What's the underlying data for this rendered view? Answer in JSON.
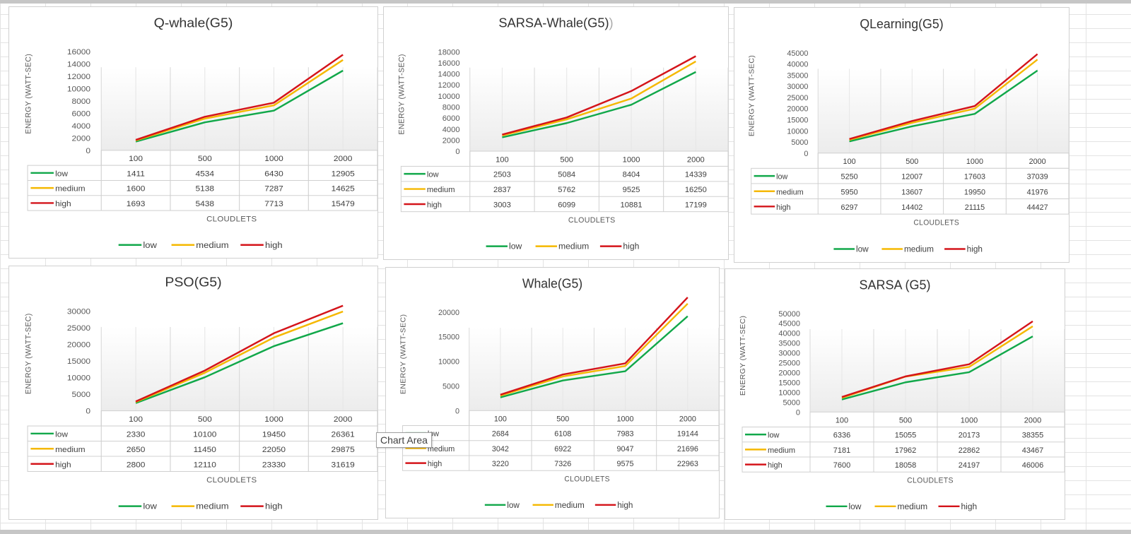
{
  "chart_data": [
    {
      "type": "line",
      "title": "Q-whale(G5)",
      "xlabel": "CLOUDLETS",
      "ylabel": "ENERGY (WATT-SEC)",
      "categories": [
        "100",
        "500",
        "1000",
        "2000"
      ],
      "y_ticks": [
        "0",
        "2000",
        "4000",
        "6000",
        "8000",
        "10000",
        "12000",
        "14000",
        "16000"
      ],
      "ylim": [
        0,
        16000
      ],
      "series": [
        {
          "name": "low",
          "values": [
            1411,
            4534,
            6430,
            12905
          ]
        },
        {
          "name": "medium",
          "values": [
            1600,
            5138,
            7287,
            14625
          ]
        },
        {
          "name": "high",
          "values": [
            1693,
            5438,
            7713,
            15479
          ]
        }
      ]
    },
    {
      "type": "line",
      "title": "SARSA-Whale(G5)",
      "title_paren": ")",
      "xlabel": "CLOUDLETS",
      "ylabel": "ENERGY (WATT-SEC)",
      "categories": [
        "100",
        "500",
        "1000",
        "2000"
      ],
      "y_ticks": [
        "0",
        "2000",
        "4000",
        "6000",
        "8000",
        "10000",
        "12000",
        "14000",
        "16000",
        "18000"
      ],
      "ylim": [
        0,
        18000
      ],
      "series": [
        {
          "name": "low",
          "values": [
            2503,
            5084,
            8404,
            14339
          ]
        },
        {
          "name": "medium",
          "values": [
            2837,
            5762,
            9525,
            16250
          ]
        },
        {
          "name": "high",
          "values": [
            3003,
            6099,
            10881,
            17199
          ]
        }
      ]
    },
    {
      "type": "line",
      "title": "QLearning(G5)",
      "xlabel": "CLOUDLETS",
      "ylabel": "ENERGY (WATT-SEC)",
      "categories": [
        "100",
        "500",
        "1000",
        "2000"
      ],
      "y_ticks": [
        "0",
        "5000",
        "10000",
        "15000",
        "20000",
        "25000",
        "30000",
        "35000",
        "40000",
        "45000"
      ],
      "ylim": [
        0,
        45000
      ],
      "series": [
        {
          "name": "low",
          "values": [
            5250,
            12007,
            17603,
            37039
          ]
        },
        {
          "name": "medium",
          "values": [
            5950,
            13607,
            19950,
            41976
          ]
        },
        {
          "name": "high",
          "values": [
            6297,
            14402,
            21115,
            44427
          ]
        }
      ]
    },
    {
      "type": "line",
      "title": "PSO(G5)",
      "xlabel": "CLOUDLETS",
      "ylabel": "ENERGY (WATT-SEC)",
      "categories": [
        "100",
        "500",
        "1000",
        "2000"
      ],
      "y_ticks": [
        "0",
        "5000",
        "10000",
        "15000",
        "20000",
        "25000",
        "30000"
      ],
      "ylim": [
        0,
        30000
      ],
      "series": [
        {
          "name": "low",
          "values": [
            2330,
            10100,
            19450,
            26361
          ]
        },
        {
          "name": "medium",
          "values": [
            2650,
            11450,
            22050,
            29875
          ]
        },
        {
          "name": "high",
          "values": [
            2800,
            12110,
            23330,
            31619
          ]
        }
      ]
    },
    {
      "type": "line",
      "title": "Whale(G5)",
      "xlabel": "CLOUDLETS",
      "ylabel": "ENERGY (WATT-SEC)",
      "categories": [
        "100",
        "500",
        "1000",
        "2000"
      ],
      "y_ticks": [
        "0",
        "5000",
        "10000",
        "15000",
        "20000"
      ],
      "ylim": [
        0,
        20000
      ],
      "series": [
        {
          "name": "low",
          "values": [
            2684,
            6108,
            7983,
            19144
          ]
        },
        {
          "name": "medium",
          "values": [
            3042,
            6922,
            9047,
            21696
          ]
        },
        {
          "name": "high",
          "values": [
            3220,
            7326,
            9575,
            22963
          ]
        }
      ]
    },
    {
      "type": "line",
      "title": "SARSA (G5)",
      "xlabel": "CLOUDLETS",
      "ylabel": "ENERGY (WATT-SEC)",
      "categories": [
        "100",
        "500",
        "1000",
        "2000"
      ],
      "y_ticks": [
        "0",
        "5000",
        "10000",
        "15000",
        "20000",
        "25000",
        "30000",
        "35000",
        "40000",
        "45000",
        "50000"
      ],
      "ylim": [
        0,
        50000
      ],
      "series": [
        {
          "name": "low",
          "values": [
            6336,
            15055,
            20173,
            38355
          ]
        },
        {
          "name": "medium",
          "values": [
            7181,
            17962,
            22862,
            43467
          ]
        },
        {
          "name": "high",
          "values": [
            7600,
            18058,
            24197,
            46006
          ]
        }
      ]
    }
  ],
  "series_colors": {
    "low": "#11a84a",
    "medium": "#f5b800",
    "high": "#d4141a"
  },
  "tooltip": "Chart Area"
}
